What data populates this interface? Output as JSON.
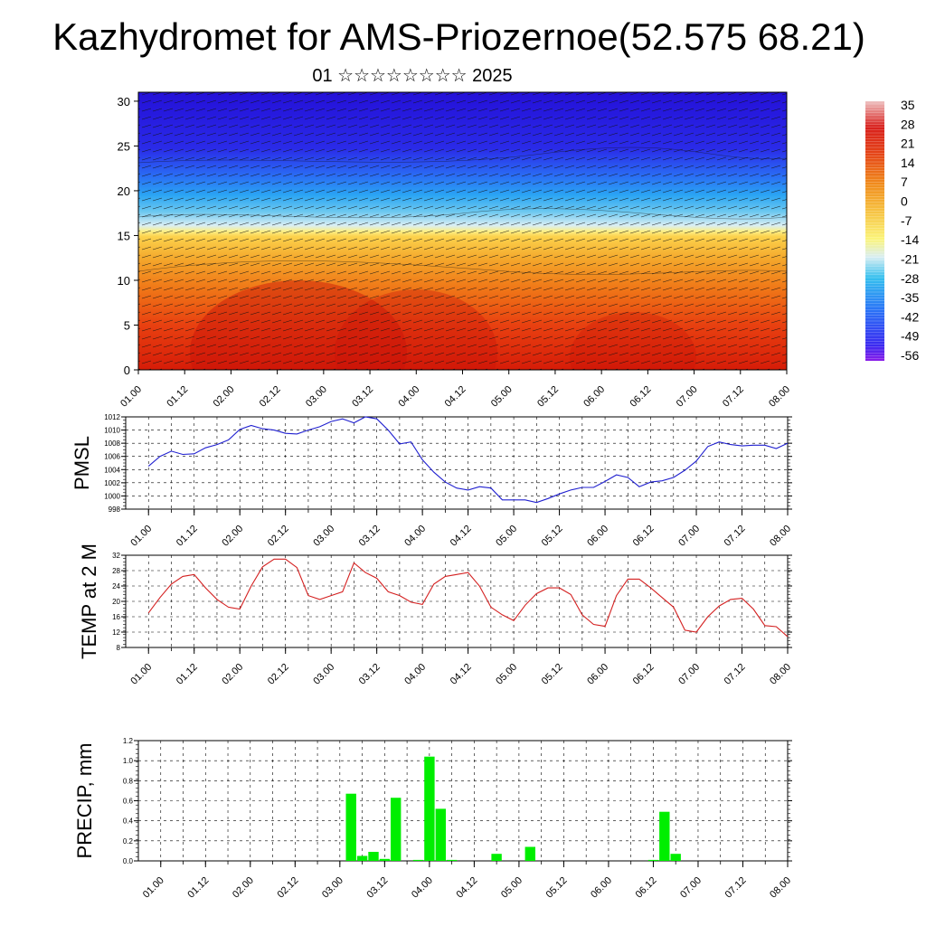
{
  "header": {
    "title": "Kazhydromet for AMS-Priozernoe(52.575 68.21)",
    "subtitle": "01 ☆☆☆☆☆☆☆☆ 2025"
  },
  "colorbar": {
    "labels": [
      "35",
      "28",
      "21",
      "14",
      "7",
      "0",
      "-7",
      "-14",
      "-21",
      "-28",
      "-35",
      "-42",
      "-49",
      "-56"
    ]
  },
  "chart_data": [
    {
      "type": "heatmap",
      "description_free": true,
      "x_tick_labels": [
        "01.00",
        "01.12",
        "02.00",
        "02.12",
        "03.00",
        "03.12",
        "04.00",
        "04.12",
        "05.00",
        "05.12",
        "06.00",
        "06.12",
        "07.00",
        "07.12",
        "08.00"
      ],
      "y_tick_labels": [
        "0",
        "5",
        "10",
        "15",
        "20",
        "25",
        "30"
      ],
      "ylim": [
        0,
        31
      ],
      "value_colorbar": [
        -56,
        35
      ],
      "overlay": "wind vectors"
    },
    {
      "type": "line",
      "ylabel": "PMSL",
      "ylim": [
        998,
        1012
      ],
      "y_tick_labels": [
        "998",
        "1000",
        "1002",
        "1004",
        "1006",
        "1008",
        "1010",
        "1012"
      ],
      "x_tick_labels": [
        "01.00",
        "01.12",
        "02.00",
        "02.12",
        "03.00",
        "03.12",
        "04.00",
        "04.12",
        "05.00",
        "05.12",
        "06.00",
        "06.12",
        "07.00",
        "07.12",
        "08.00"
      ],
      "x_range": [
        -2,
        56
      ],
      "color": "#2020d0",
      "x": [
        0,
        1,
        2,
        3,
        4,
        5,
        6,
        7,
        8,
        9,
        10,
        11,
        12,
        13,
        14,
        15,
        16,
        17,
        18,
        19,
        20,
        21,
        22,
        23,
        24,
        25,
        26,
        27,
        28,
        29,
        30,
        31,
        32,
        33,
        34,
        35,
        36,
        37,
        38,
        39,
        40,
        41,
        42,
        43,
        44,
        45,
        46,
        47,
        48,
        49,
        50,
        51,
        52,
        53,
        54,
        55,
        56
      ],
      "values": [
        1004.5,
        1006,
        1006.8,
        1006.3,
        1006.4,
        1007.3,
        1007.8,
        1008.5,
        1010.1,
        1010.7,
        1010.2,
        1010,
        1009.5,
        1009.4,
        1010,
        1010.5,
        1011.3,
        1011.7,
        1011.1,
        1012,
        1011.7,
        1010,
        1007.9,
        1008.2,
        1005.5,
        1003.6,
        1002.1,
        1001.2,
        1000.9,
        1001.4,
        1001.2,
        999.4,
        999.4,
        999.4,
        999,
        999.6,
        1000.3,
        1000.9,
        1001.3,
        1001.3,
        1002.2,
        1003.2,
        1002.8,
        1001.4,
        1002.1,
        1002.3,
        1002.8,
        1003.9,
        1005.3,
        1007.5,
        1008.2,
        1007.8,
        1007.6,
        1007.7,
        1007.7,
        1007.2,
        1008
      ],
      "grid": true
    },
    {
      "type": "line",
      "ylabel": "TEMP at 2 M",
      "ylim": [
        8,
        32
      ],
      "y_tick_labels": [
        "8",
        "12",
        "16",
        "20",
        "24",
        "28",
        "32"
      ],
      "x_tick_labels": [
        "01.00",
        "01.12",
        "02.00",
        "02.12",
        "03.00",
        "03.12",
        "04.00",
        "04.12",
        "05.00",
        "05.12",
        "06.00",
        "06.12",
        "07.00",
        "07.12",
        "08.00"
      ],
      "color": "#d42020",
      "x": [
        0,
        1,
        2,
        3,
        4,
        5,
        6,
        7,
        8,
        9,
        10,
        11,
        12,
        13,
        14,
        15,
        16,
        17,
        18,
        19,
        20,
        21,
        22,
        23,
        24,
        25,
        26,
        27,
        28,
        29,
        30,
        31,
        32,
        33,
        34,
        35,
        36,
        37,
        38,
        39,
        40,
        41,
        42,
        43,
        44,
        45,
        46,
        47,
        48,
        49,
        50,
        51,
        52,
        53,
        54,
        55,
        56
      ],
      "values": [
        17,
        21,
        24.5,
        26.5,
        27,
        23.5,
        20.5,
        18.5,
        18,
        24,
        29,
        31,
        31,
        28.8,
        21.5,
        20.5,
        21.5,
        22.5,
        30,
        27.5,
        26,
        22.5,
        21.5,
        19.8,
        19.2,
        24.5,
        26.5,
        27,
        27.5,
        24,
        18.5,
        16.5,
        15,
        19,
        22,
        23.5,
        23.5,
        21.8,
        16.5,
        14,
        13.5,
        21.5,
        25.8,
        25.8,
        23.5,
        21,
        18.5,
        12.5,
        12,
        16,
        18.8,
        20.5,
        20.8,
        18,
        13.7,
        13.4,
        10.8
      ],
      "grid": true
    },
    {
      "type": "bar",
      "ylabel": "PRECIP, mm",
      "ylim": [
        0,
        1.2
      ],
      "y_tick_labels": [
        "0.0",
        "0.2",
        "0.4",
        "0.6",
        "0.8",
        "1.0",
        "1.2"
      ],
      "x_tick_labels": [
        "01.00",
        "01.12",
        "02.00",
        "02.12",
        "03.00",
        "03.12",
        "04.00",
        "04.12",
        "05.00",
        "05.12",
        "06.00",
        "06.12",
        "07.00",
        "07.12",
        "08.00"
      ],
      "color": "#00ee00",
      "x": [
        17,
        18,
        19,
        20,
        21,
        23,
        24,
        25,
        26,
        30,
        33,
        44,
        45,
        46
      ],
      "values": [
        0.67,
        0.05,
        0.09,
        0.02,
        0.63,
        0.01,
        1.04,
        0.52,
        0.01,
        0.07,
        0.14,
        0.01,
        0.49,
        0.07
      ],
      "grid": true
    }
  ]
}
